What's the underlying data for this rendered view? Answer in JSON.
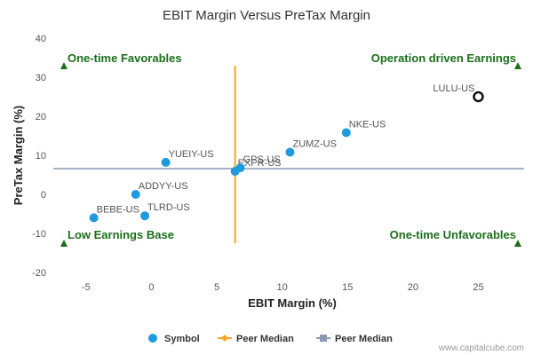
{
  "chart_data": {
    "type": "scatter",
    "title": "EBIT Margin Versus PreTax Margin",
    "xlabel": "EBIT Margin (%)",
    "ylabel": "PreTax Margin (%)",
    "xlim": [
      -7.5,
      28.5
    ],
    "ylim": [
      -20,
      40
    ],
    "x_ticks": [
      "-5",
      "0",
      "5",
      "10",
      "15",
      "20",
      "25"
    ],
    "x_tick_values": [
      -5,
      0,
      5,
      10,
      15,
      20,
      25
    ],
    "y_ticks": [
      "-20",
      "-10",
      "0",
      "10",
      "20",
      "30",
      "40"
    ],
    "y_tick_values": [
      -20,
      -10,
      0,
      10,
      20,
      30,
      40
    ],
    "series": [
      {
        "name": "Symbol",
        "color": "#1e9ae0",
        "points": [
          {
            "label": "BEBE-US",
            "x": -4.4,
            "y": -6.0
          },
          {
            "label": "TLRD-US",
            "x": -0.5,
            "y": -5.5
          },
          {
            "label": "ADDYY-US",
            "x": -1.2,
            "y": 0.0
          },
          {
            "label": "YUEIY-US",
            "x": 1.1,
            "y": 8.2
          },
          {
            "label": "EXPR-US",
            "x": 6.4,
            "y": 5.9
          },
          {
            "label": "GPS-US",
            "x": 6.8,
            "y": 6.8
          },
          {
            "label": "ZUMZ-US",
            "x": 10.6,
            "y": 10.8
          },
          {
            "label": "NKE-US",
            "x": 14.9,
            "y": 15.8
          },
          {
            "label": "LULU-US",
            "x": 25.0,
            "y": 25.0,
            "highlighted": true
          }
        ]
      },
      {
        "name": "Peer Median",
        "color": "#f5a623",
        "orientation": "vertical",
        "value": 6.4
      },
      {
        "name": "Peer Median",
        "color": "#8a9ab0",
        "orientation": "horizontal",
        "value": 6.6
      }
    ],
    "quadrants": [
      {
        "text": "One-time Favorables",
        "position": "top-left"
      },
      {
        "text": "Operation driven Earnings",
        "position": "top-right"
      },
      {
        "text": "Low Earnings Base",
        "position": "bottom-left"
      },
      {
        "text": "One-time Unfavorables",
        "position": "bottom-right"
      }
    ],
    "quadrant_marker_color": "#1a6f1a",
    "grid": false,
    "legend_position": "bottom-center"
  },
  "credit": "www.capitalcube.com"
}
